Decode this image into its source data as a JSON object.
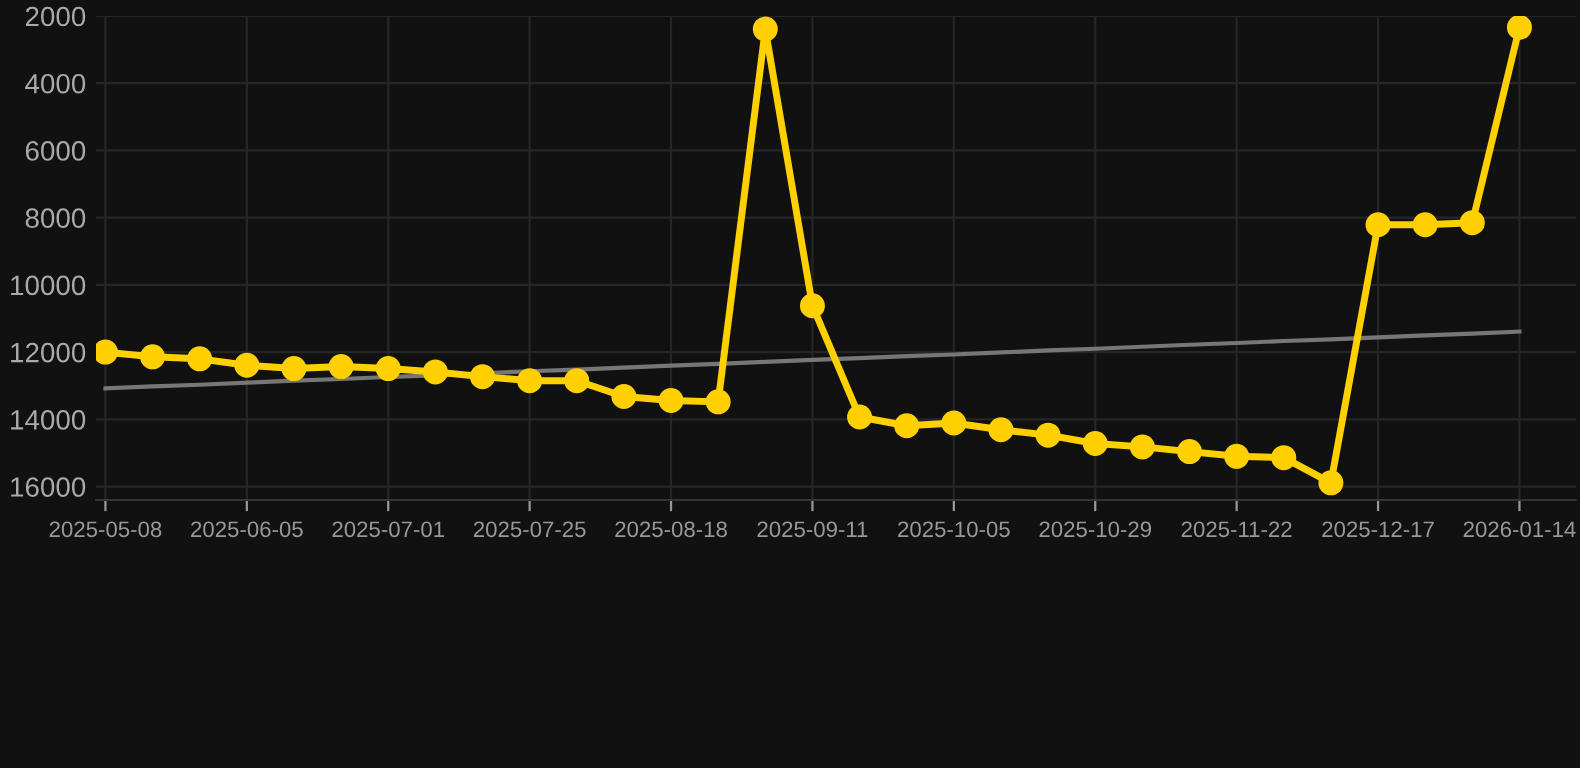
{
  "chart_data": {
    "type": "line",
    "categories": [
      "2025-05-08",
      null,
      null,
      "2025-06-05",
      null,
      null,
      "2025-07-01",
      null,
      null,
      "2025-07-25",
      null,
      null,
      "2025-08-18",
      null,
      null,
      "2025-09-11",
      null,
      null,
      "2025-10-05",
      null,
      null,
      "2025-10-29",
      null,
      null,
      "2025-11-22",
      null,
      null,
      "2025-12-17",
      null,
      null,
      "2026-01-14"
    ],
    "series": [
      {
        "color": "#ffd000",
        "marker": "circle",
        "values": [
          12000,
          12140,
          12200,
          12390,
          12490,
          12430,
          12490,
          12590,
          12730,
          12850,
          12850,
          13320,
          13440,
          13480,
          2390,
          10620,
          13930,
          14190,
          14110,
          14310,
          14470,
          14720,
          14820,
          14960,
          15100,
          15140,
          15890,
          8210,
          8210,
          8150,
          2340
        ]
      },
      {
        "type": "line",
        "color": "#777777",
        "marker": "none",
        "values": [
          13080,
          13020,
          12970,
          12910,
          12850,
          12800,
          12740,
          12690,
          12630,
          12570,
          12520,
          12460,
          12400,
          12350,
          12290,
          12230,
          12180,
          12120,
          12070,
          12010,
          11950,
          11900,
          11840,
          11780,
          11730,
          11670,
          11620,
          11560,
          11500,
          11450,
          11390
        ]
      }
    ],
    "ylim": [
      16400,
      2000
    ],
    "yticks": [
      2000,
      4000,
      6000,
      8000,
      10000,
      12000,
      14000,
      16000
    ],
    "grid": true
  }
}
